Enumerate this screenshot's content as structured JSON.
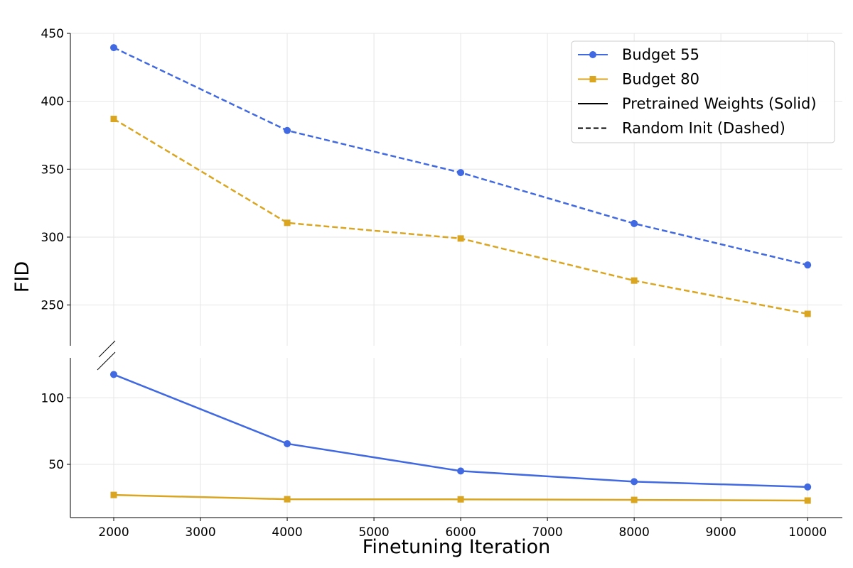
{
  "chart_data": {
    "type": "line",
    "xlabel": "Finetuning Iteration",
    "ylabel": "FID",
    "x": [
      2000,
      4000,
      6000,
      8000,
      10000
    ],
    "xticks": [
      "2000",
      "3000",
      "4000",
      "5000",
      "6000",
      "7000",
      "8000",
      "9000",
      "10000"
    ],
    "xlim": [
      1500,
      10400
    ],
    "broken_axis": true,
    "upper_ylim": [
      220,
      450
    ],
    "upper_yticks": [
      "250",
      "300",
      "350",
      "400",
      "450"
    ],
    "lower_ylim": [
      10,
      130
    ],
    "lower_yticks": [
      "50",
      "100"
    ],
    "grid": true,
    "legend_position": "top-right",
    "series": [
      {
        "name": "Budget 55",
        "init": "Random Init",
        "line_style": "dashed",
        "marker": "circle",
        "color": "#4169e1",
        "values": [
          439.5,
          378.5,
          347.5,
          310,
          279.5
        ]
      },
      {
        "name": "Budget 80",
        "init": "Random Init",
        "line_style": "dashed",
        "marker": "square",
        "color": "#daa520",
        "values": [
          387,
          310.5,
          299,
          268,
          243.5
        ]
      },
      {
        "name": "Budget 55",
        "init": "Pretrained Weights",
        "line_style": "solid",
        "marker": "circle",
        "color": "#4169e1",
        "values": [
          117.5,
          65.5,
          45,
          37,
          33
        ]
      },
      {
        "name": "Budget 80",
        "init": "Pretrained Weights",
        "line_style": "solid",
        "marker": "square",
        "color": "#daa520",
        "values": [
          27,
          23.8,
          23.7,
          23.3,
          22.8
        ]
      }
    ],
    "legend": [
      {
        "label": "Budget 55",
        "kind": "color",
        "color": "#4169e1",
        "marker": "circle"
      },
      {
        "label": "Budget 80",
        "kind": "color",
        "color": "#daa520",
        "marker": "square"
      },
      {
        "label": "Pretrained Weights (Solid)",
        "kind": "style",
        "line_style": "solid"
      },
      {
        "label": "Random Init (Dashed)",
        "kind": "style",
        "line_style": "dashed"
      }
    ]
  }
}
